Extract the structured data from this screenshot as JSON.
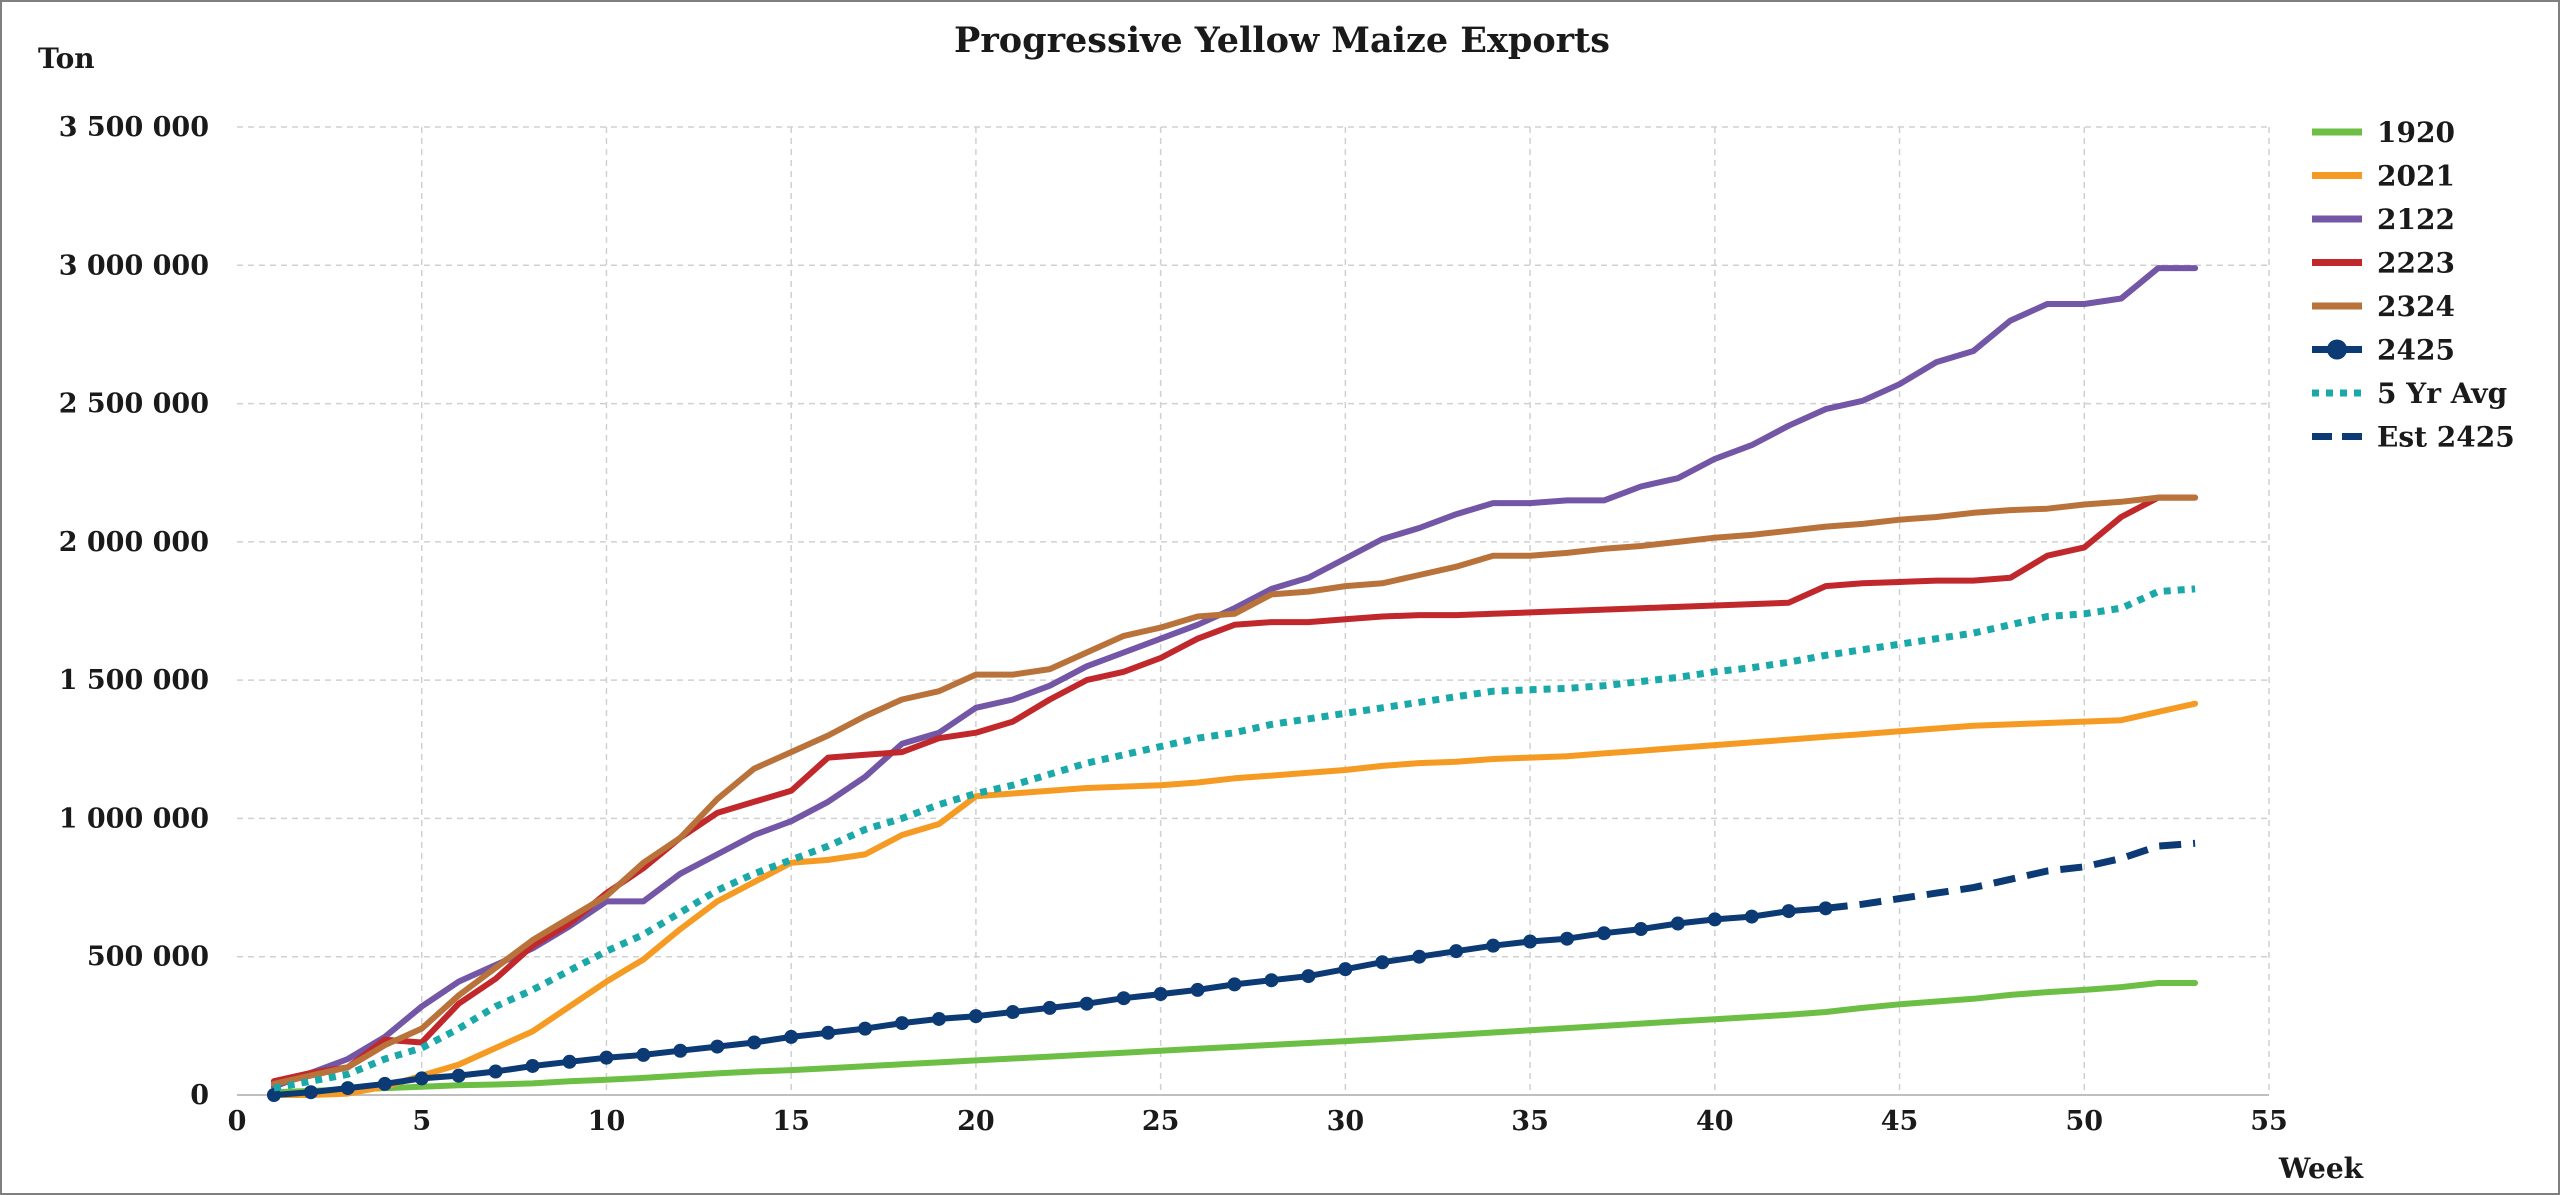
{
  "chart_data": {
    "type": "line",
    "title": "Progressive Yellow Maize Exports",
    "xlabel": "Week",
    "ylabel": "Ton",
    "xlim": [
      0,
      55
    ],
    "ylim": [
      0,
      3500000
    ],
    "xticks": [
      0,
      5,
      10,
      15,
      20,
      25,
      30,
      35,
      40,
      45,
      50,
      55
    ],
    "yticks": [
      0,
      500000,
      1000000,
      1500000,
      2000000,
      2500000,
      3000000,
      3500000
    ],
    "ytick_labels": [
      "0",
      "500 000",
      "1 000 000",
      "1 500 000",
      "2 000 000",
      "2 500 000",
      "3 000 000",
      "3 500 000"
    ],
    "xtick_labels": [
      "0",
      "5",
      "10",
      "15",
      "20",
      "25",
      "30",
      "35",
      "40",
      "45",
      "50",
      "55"
    ],
    "grid": true,
    "legend_position": "right",
    "series": [
      {
        "name": "1920",
        "color": "#6cbf44",
        "style": "solid",
        "x": [
          1,
          2,
          3,
          4,
          5,
          6,
          7,
          8,
          9,
          10,
          11,
          12,
          13,
          14,
          15,
          16,
          17,
          18,
          19,
          20,
          21,
          22,
          23,
          24,
          25,
          26,
          27,
          28,
          29,
          30,
          31,
          32,
          33,
          34,
          35,
          36,
          37,
          38,
          39,
          40,
          41,
          42,
          43,
          44,
          45,
          46,
          47,
          48,
          49,
          50,
          51,
          52,
          53
        ],
        "values": [
          10000,
          15000,
          20000,
          25000,
          30000,
          35000,
          38000,
          42000,
          50000,
          55000,
          62000,
          70000,
          78000,
          85000,
          90000,
          97000,
          104000,
          111000,
          118000,
          125000,
          132000,
          139000,
          146000,
          153000,
          160000,
          167000,
          174000,
          181000,
          188000,
          195000,
          202000,
          210000,
          218000,
          226000,
          234000,
          242000,
          250000,
          258000,
          266000,
          274000,
          282000,
          290000,
          300000,
          315000,
          328000,
          338000,
          348000,
          362000,
          372000,
          380000,
          390000,
          405000,
          405000
        ]
      },
      {
        "name": "2021",
        "color": "#f59b23",
        "style": "solid",
        "x": [
          1,
          2,
          3,
          4,
          5,
          6,
          7,
          8,
          9,
          10,
          11,
          12,
          13,
          14,
          15,
          16,
          17,
          18,
          19,
          20,
          21,
          22,
          23,
          24,
          25,
          26,
          27,
          28,
          29,
          30,
          31,
          32,
          33,
          34,
          35,
          36,
          37,
          38,
          39,
          40,
          41,
          42,
          43,
          44,
          45,
          46,
          47,
          48,
          49,
          50,
          51,
          52,
          53
        ],
        "values": [
          0,
          0,
          5000,
          30000,
          70000,
          110000,
          170000,
          230000,
          320000,
          410000,
          490000,
          600000,
          700000,
          770000,
          840000,
          850000,
          870000,
          940000,
          980000,
          1080000,
          1090000,
          1100000,
          1110000,
          1115000,
          1120000,
          1130000,
          1145000,
          1155000,
          1165000,
          1175000,
          1190000,
          1200000,
          1205000,
          1215000,
          1220000,
          1225000,
          1235000,
          1245000,
          1255000,
          1265000,
          1275000,
          1285000,
          1295000,
          1305000,
          1315000,
          1325000,
          1335000,
          1340000,
          1345000,
          1350000,
          1355000,
          1385000,
          1415000
        ]
      },
      {
        "name": "2122",
        "color": "#7356a6",
        "style": "solid",
        "x": [
          1,
          2,
          3,
          4,
          5,
          6,
          7,
          8,
          9,
          10,
          11,
          12,
          13,
          14,
          15,
          16,
          17,
          18,
          19,
          20,
          21,
          22,
          23,
          24,
          25,
          26,
          27,
          28,
          29,
          30,
          31,
          32,
          33,
          34,
          35,
          36,
          37,
          38,
          39,
          40,
          41,
          42,
          43,
          44,
          45,
          46,
          47,
          48,
          49,
          50,
          51,
          52,
          53
        ],
        "values": [
          30000,
          80000,
          130000,
          210000,
          320000,
          410000,
          470000,
          530000,
          610000,
          700000,
          700000,
          800000,
          870000,
          940000,
          990000,
          1060000,
          1150000,
          1270000,
          1310000,
          1400000,
          1430000,
          1480000,
          1550000,
          1600000,
          1650000,
          1700000,
          1760000,
          1830000,
          1870000,
          1940000,
          2010000,
          2050000,
          2100000,
          2140000,
          2140000,
          2150000,
          2150000,
          2200000,
          2230000,
          2300000,
          2350000,
          2420000,
          2480000,
          2510000,
          2570000,
          2650000,
          2690000,
          2800000,
          2860000,
          2860000,
          2880000,
          2990000,
          2990000
        ]
      },
      {
        "name": "2223",
        "color": "#c0282c",
        "style": "solid",
        "x": [
          1,
          2,
          3,
          4,
          5,
          6,
          7,
          8,
          9,
          10,
          11,
          12,
          13,
          14,
          15,
          16,
          17,
          18,
          19,
          20,
          21,
          22,
          23,
          24,
          25,
          26,
          27,
          28,
          29,
          30,
          31,
          32,
          33,
          34,
          35,
          36,
          37,
          38,
          39,
          40,
          41,
          42,
          43,
          44,
          45,
          46,
          47,
          48,
          49,
          50,
          51,
          52,
          53
        ],
        "values": [
          50000,
          80000,
          100000,
          200000,
          190000,
          330000,
          420000,
          540000,
          620000,
          730000,
          820000,
          930000,
          1020000,
          1060000,
          1100000,
          1220000,
          1230000,
          1240000,
          1290000,
          1310000,
          1350000,
          1430000,
          1500000,
          1530000,
          1580000,
          1650000,
          1700000,
          1710000,
          1710000,
          1720000,
          1730000,
          1735000,
          1735000,
          1740000,
          1745000,
          1750000,
          1755000,
          1760000,
          1765000,
          1770000,
          1775000,
          1780000,
          1840000,
          1850000,
          1855000,
          1860000,
          1860000,
          1870000,
          1950000,
          1980000,
          2090000,
          2160000,
          2160000
        ]
      },
      {
        "name": "2324",
        "color": "#b9733a",
        "style": "solid",
        "x": [
          1,
          2,
          3,
          4,
          5,
          6,
          7,
          8,
          9,
          10,
          11,
          12,
          13,
          14,
          15,
          16,
          17,
          18,
          19,
          20,
          21,
          22,
          23,
          24,
          25,
          26,
          27,
          28,
          29,
          30,
          31,
          32,
          33,
          34,
          35,
          36,
          37,
          38,
          39,
          40,
          41,
          42,
          43,
          44,
          45,
          46,
          47,
          48,
          49,
          50,
          51,
          52,
          53
        ],
        "values": [
          40000,
          70000,
          100000,
          180000,
          240000,
          360000,
          460000,
          560000,
          640000,
          720000,
          840000,
          930000,
          1070000,
          1180000,
          1240000,
          1300000,
          1370000,
          1430000,
          1460000,
          1520000,
          1520000,
          1540000,
          1600000,
          1660000,
          1690000,
          1730000,
          1740000,
          1810000,
          1820000,
          1840000,
          1850000,
          1880000,
          1910000,
          1950000,
          1950000,
          1960000,
          1975000,
          1985000,
          2000000,
          2015000,
          2025000,
          2040000,
          2055000,
          2065000,
          2080000,
          2090000,
          2105000,
          2115000,
          2120000,
          2135000,
          2145000,
          2160000,
          2160000
        ]
      },
      {
        "name": "2425",
        "color": "#0b3a75",
        "style": "solid-markers",
        "x": [
          1,
          2,
          3,
          4,
          5,
          6,
          7,
          8,
          9,
          10,
          11,
          12,
          13,
          14,
          15,
          16,
          17,
          18,
          19,
          20,
          21,
          22,
          23,
          24,
          25,
          26,
          27,
          28,
          29,
          30,
          31,
          32,
          33,
          34,
          35,
          36,
          37,
          38,
          39,
          40,
          41,
          42,
          43
        ],
        "values": [
          0,
          10000,
          25000,
          40000,
          60000,
          70000,
          85000,
          105000,
          120000,
          135000,
          145000,
          160000,
          175000,
          190000,
          210000,
          225000,
          240000,
          260000,
          275000,
          285000,
          300000,
          315000,
          330000,
          350000,
          365000,
          380000,
          400000,
          415000,
          430000,
          455000,
          480000,
          500000,
          520000,
          540000,
          555000,
          565000,
          585000,
          600000,
          620000,
          635000,
          645000,
          665000,
          675000
        ]
      },
      {
        "name": "5 Yr Avg",
        "color": "#1aa8a8",
        "style": "dotted",
        "x": [
          1,
          2,
          3,
          4,
          5,
          6,
          7,
          8,
          9,
          10,
          11,
          12,
          13,
          14,
          15,
          16,
          17,
          18,
          19,
          20,
          21,
          22,
          23,
          24,
          25,
          26,
          27,
          28,
          29,
          30,
          31,
          32,
          33,
          34,
          35,
          36,
          37,
          38,
          39,
          40,
          41,
          42,
          43,
          44,
          45,
          46,
          47,
          48,
          49,
          50,
          51,
          52,
          53
        ],
        "values": [
          25000,
          50000,
          75000,
          130000,
          170000,
          240000,
          320000,
          380000,
          450000,
          520000,
          580000,
          660000,
          740000,
          800000,
          850000,
          900000,
          960000,
          1000000,
          1050000,
          1090000,
          1120000,
          1160000,
          1200000,
          1230000,
          1260000,
          1290000,
          1310000,
          1340000,
          1360000,
          1380000,
          1400000,
          1420000,
          1440000,
          1460000,
          1465000,
          1470000,
          1480000,
          1495000,
          1510000,
          1530000,
          1545000,
          1565000,
          1590000,
          1610000,
          1630000,
          1650000,
          1670000,
          1700000,
          1730000,
          1740000,
          1760000,
          1820000,
          1830000
        ]
      },
      {
        "name": "Est 2425",
        "color": "#0b3a75",
        "style": "dashed",
        "x": [
          43,
          44,
          45,
          46,
          47,
          48,
          49,
          50,
          51,
          52,
          53
        ],
        "values": [
          675000,
          690000,
          710000,
          730000,
          750000,
          780000,
          810000,
          825000,
          855000,
          900000,
          910000
        ]
      }
    ]
  }
}
